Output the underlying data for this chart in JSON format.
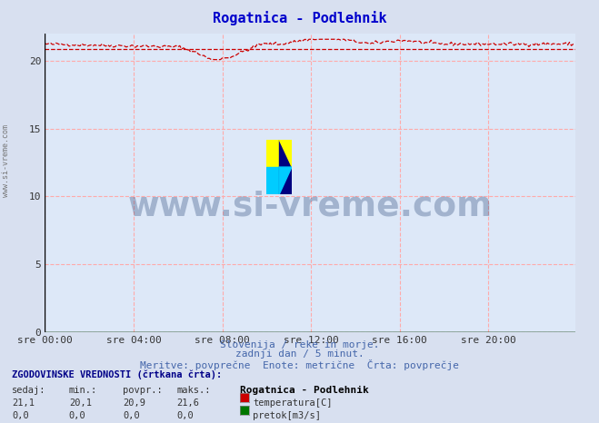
{
  "title": "Rogatnica - Podlehnik",
  "title_color": "#0000cc",
  "bg_color": "#d8e0f0",
  "plot_bg_color": "#dde8f8",
  "grid_color": "#ffaaaa",
  "grid_style": "--",
  "axis_color": "#000000",
  "xlabel_ticks": [
    "sre 00:00",
    "sre 04:00",
    "sre 08:00",
    "sre 12:00",
    "sre 16:00",
    "sre 20:00"
  ],
  "xlabel_tick_positions": [
    0,
    48,
    96,
    144,
    192,
    240
  ],
  "ylim": [
    0,
    22
  ],
  "xlim": [
    0,
    287
  ],
  "yticks": [
    0,
    5,
    10,
    15,
    20
  ],
  "temp_color": "#cc0000",
  "pretok_color": "#007700",
  "watermark_text": "www.si-vreme.com",
  "watermark_color": "#1a3a6e",
  "watermark_alpha": 0.3,
  "subtitle1": "Slovenija / reke in morje.",
  "subtitle2": "zadnji dan / 5 minut.",
  "subtitle3": "Meritve: povprečne  Enote: metrične  Črta: povprečje",
  "subtitle_color": "#4466aa",
  "legend_title": "ZGODOVINSKE VREDNOSTI (črtkana črta):",
  "legend_cols": [
    "sedaj:",
    "min.:",
    "povpr.:",
    "maks.:"
  ],
  "legend_row1": [
    "21,1",
    "20,1",
    "20,9",
    "21,6"
  ],
  "legend_row2": [
    "0,0",
    "0,0",
    "0,0",
    "0,0"
  ],
  "legend_series1": "temperatura[C]",
  "legend_series2": "pretok[m3/s]",
  "legend_station": "Rogatnica - Podlehnik",
  "avg_temp": 20.9,
  "min_temp": 20.1,
  "max_temp": 21.6,
  "current_temp": 21.1,
  "n_points": 288
}
